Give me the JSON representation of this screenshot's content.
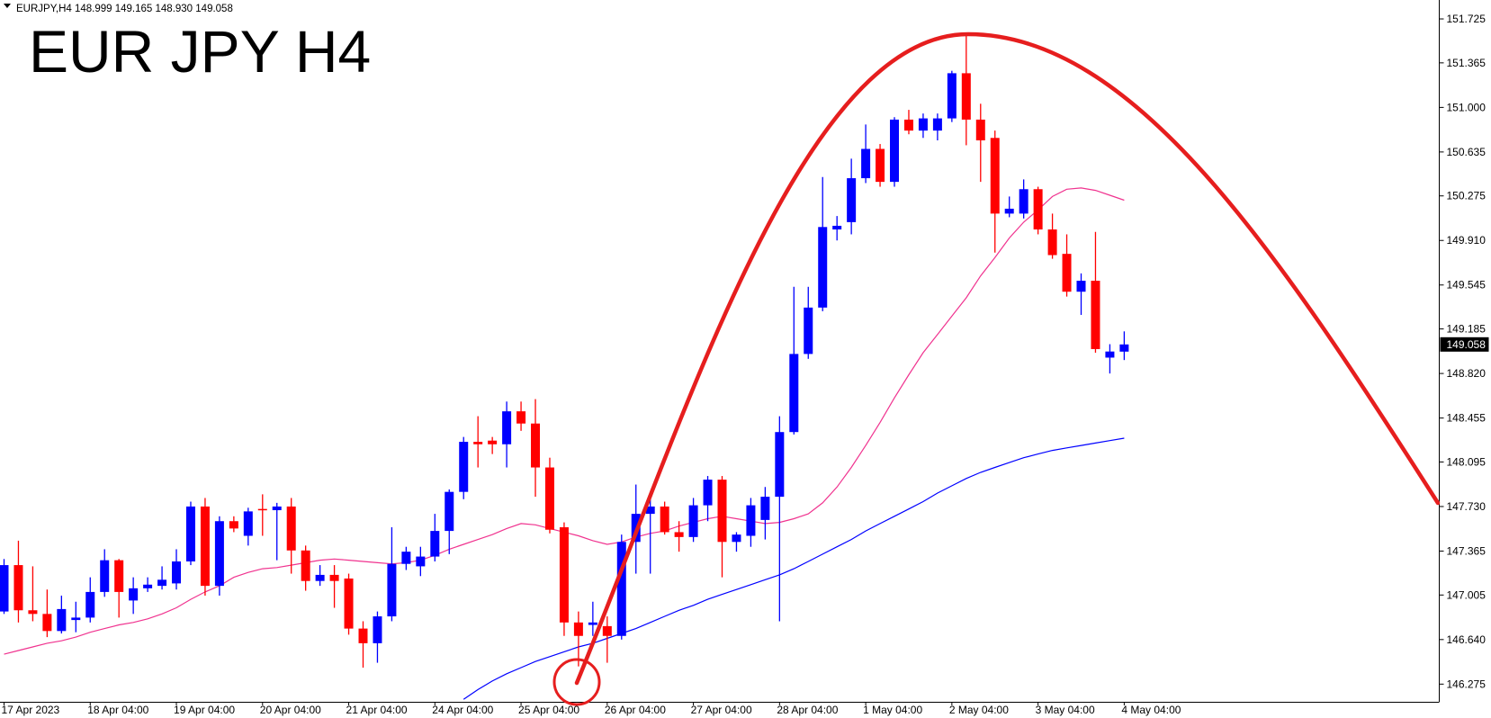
{
  "chart_data": {
    "type": "candlestick",
    "title": "EUR JPY H4",
    "info": "EURJPY,H4  148.999 149.165 148.930 149.058",
    "categories": [
      "17 Apr 2023",
      null,
      null,
      null,
      null,
      null,
      "18 Apr 04:00",
      null,
      null,
      null,
      null,
      null,
      "19 Apr 04:00",
      null,
      null,
      null,
      null,
      null,
      "20 Apr 04:00",
      null,
      null,
      null,
      null,
      null,
      "21 Apr 04:00",
      null,
      null,
      null,
      null,
      null,
      "24 Apr 04:00",
      null,
      null,
      null,
      null,
      null,
      "25 Apr 04:00",
      null,
      null,
      null,
      null,
      null,
      "26 Apr 04:00",
      null,
      null,
      null,
      null,
      null,
      "27 Apr 04:00",
      null,
      null,
      null,
      null,
      null,
      "28 Apr 04:00",
      null,
      null,
      null,
      null,
      null,
      "1 May 04:00",
      null,
      null,
      null,
      null,
      null,
      "2 May 04:00",
      null,
      null,
      null,
      null,
      null,
      "3 May 04:00",
      null,
      null,
      null,
      null,
      null,
      "4 May 04:00"
    ],
    "open": [
      146.87,
      147.25,
      146.88,
      146.85,
      146.71,
      146.8,
      146.82,
      147.03,
      147.29,
      146.96,
      147.06,
      147.08,
      147.1,
      147.28,
      147.73,
      147.08,
      147.61,
      147.49,
      147.71,
      147.7,
      147.73,
      147.37,
      147.12,
      147.17,
      147.14,
      146.73,
      146.61,
      146.83,
      147.26,
      147.24,
      147.32,
      147.53,
      147.85,
      148.26,
      148.27,
      148.24,
      148.51,
      148.41,
      148.05,
      147.56,
      146.78,
      146.76,
      146.75,
      146.67,
      147.44,
      147.67,
      147.73,
      147.52,
      147.48,
      147.74,
      147.95,
      147.44,
      147.49,
      147.62,
      147.81,
      148.34,
      148.98,
      149.36,
      150.0,
      150.06,
      150.42,
      150.66,
      150.39,
      150.9,
      150.81,
      150.81,
      150.91,
      151.28,
      150.9,
      150.75,
      150.13,
      150.13,
      150.33,
      150.0,
      149.8,
      149.49,
      149.58,
      148.95,
      148.999
    ],
    "high": [
      147.3,
      147.45,
      147.24,
      147.05,
      147.0,
      146.95,
      147.15,
      147.38,
      147.3,
      147.15,
      147.15,
      147.24,
      147.38,
      147.77,
      147.8,
      147.65,
      147.65,
      147.72,
      147.83,
      147.76,
      147.8,
      147.41,
      147.25,
      147.25,
      147.18,
      146.79,
      146.87,
      147.56,
      147.4,
      147.4,
      147.67,
      147.87,
      148.3,
      148.47,
      148.3,
      148.59,
      148.59,
      148.61,
      148.13,
      147.6,
      146.87,
      146.95,
      146.83,
      147.5,
      147.91,
      147.81,
      147.77,
      147.61,
      147.8,
      147.98,
      147.98,
      147.52,
      147.8,
      147.89,
      148.47,
      149.53,
      149.53,
      150.43,
      150.11,
      150.58,
      150.86,
      150.7,
      150.92,
      150.98,
      150.95,
      150.95,
      151.3,
      151.61,
      151.03,
      150.81,
      150.27,
      150.41,
      150.35,
      150.13,
      149.96,
      149.64,
      149.98,
      149.06,
      149.165
    ],
    "low": [
      146.85,
      146.78,
      146.79,
      146.66,
      146.69,
      146.7,
      146.78,
      146.99,
      146.82,
      146.85,
      147.03,
      147.05,
      147.05,
      147.25,
      147.0,
      147.0,
      147.52,
      147.41,
      147.49,
      147.29,
      147.18,
      147.04,
      147.08,
      146.9,
      146.68,
      146.41,
      146.45,
      146.79,
      147.21,
      147.16,
      147.28,
      147.34,
      147.79,
      148.05,
      148.16,
      148.05,
      148.35,
      147.81,
      147.51,
      146.67,
      146.42,
      146.67,
      146.45,
      146.64,
      147.18,
      147.18,
      147.5,
      147.36,
      147.44,
      147.61,
      147.15,
      147.36,
      147.4,
      147.46,
      146.79,
      148.32,
      148.94,
      149.33,
      149.91,
      149.96,
      150.38,
      150.35,
      150.35,
      150.78,
      150.75,
      150.73,
      150.88,
      150.69,
      150.39,
      149.81,
      150.1,
      150.09,
      149.96,
      149.76,
      149.45,
      149.3,
      148.99,
      148.82,
      148.93
    ],
    "close": [
      147.25,
      146.88,
      146.85,
      146.71,
      146.89,
      146.82,
      147.03,
      147.29,
      147.03,
      147.06,
      147.09,
      147.13,
      147.28,
      147.73,
      147.08,
      147.61,
      147.55,
      147.69,
      147.7,
      147.73,
      147.37,
      147.12,
      147.17,
      147.12,
      146.73,
      146.61,
      146.83,
      147.26,
      147.36,
      147.32,
      147.53,
      147.85,
      148.26,
      148.24,
      148.24,
      148.51,
      148.41,
      148.05,
      147.54,
      146.78,
      146.67,
      146.78,
      146.67,
      147.44,
      147.67,
      147.73,
      147.52,
      147.48,
      147.74,
      147.95,
      147.44,
      147.5,
      147.74,
      147.81,
      148.34,
      148.98,
      149.36,
      150.02,
      150.03,
      150.42,
      150.66,
      150.39,
      150.9,
      150.81,
      150.91,
      150.91,
      151.28,
      150.9,
      150.73,
      150.13,
      150.17,
      150.33,
      150.0,
      149.79,
      149.49,
      149.58,
      149.02,
      149.0,
      149.058
    ],
    "up_color": "#0000ff",
    "down_color": "#ff0000",
    "moving_averages": [
      {
        "color": "#f0338f",
        "values": [
          146.52,
          146.55,
          146.58,
          146.61,
          146.63,
          146.66,
          146.7,
          146.73,
          146.76,
          146.78,
          146.81,
          146.85,
          146.9,
          146.97,
          147.03,
          147.08,
          147.15,
          147.19,
          147.22,
          147.23,
          147.25,
          147.27,
          147.29,
          147.3,
          147.29,
          147.28,
          147.27,
          147.26,
          147.27,
          147.29,
          147.33,
          147.38,
          147.42,
          147.46,
          147.5,
          147.55,
          147.59,
          147.58,
          147.55,
          147.52,
          147.49,
          147.45,
          147.42,
          147.44,
          147.48,
          147.51,
          147.53,
          147.57,
          147.6,
          147.63,
          147.65,
          147.63,
          147.61,
          147.59,
          147.6,
          147.63,
          147.67,
          147.76,
          147.89,
          148.05,
          148.23,
          148.42,
          148.62,
          148.81,
          148.99,
          149.14,
          149.29,
          149.44,
          149.62,
          149.77,
          149.93,
          150.06,
          150.16,
          150.27,
          150.33,
          150.34,
          150.32,
          150.28,
          150.24
        ]
      },
      {
        "color": "#0000ff",
        "values": [
          null,
          null,
          null,
          null,
          null,
          null,
          null,
          null,
          null,
          null,
          null,
          null,
          null,
          null,
          null,
          null,
          null,
          null,
          null,
          null,
          null,
          null,
          null,
          null,
          null,
          null,
          null,
          null,
          null,
          null,
          null,
          null,
          146.15,
          146.23,
          146.3,
          146.36,
          146.41,
          146.46,
          146.5,
          146.54,
          146.58,
          146.61,
          146.65,
          146.69,
          146.73,
          146.78,
          146.83,
          146.88,
          146.92,
          146.97,
          147.01,
          147.05,
          147.09,
          147.13,
          147.17,
          147.22,
          147.28,
          147.34,
          147.4,
          147.46,
          147.53,
          147.59,
          147.65,
          147.71,
          147.77,
          147.84,
          147.9,
          147.96,
          148.01,
          148.05,
          148.09,
          148.13,
          148.16,
          148.19,
          148.21,
          148.23,
          148.25,
          148.27,
          148.29
        ]
      }
    ],
    "ylim": [
      146.13,
      151.88
    ],
    "yticks": [
      151.725,
      151.365,
      {
        "value": 151,
        "label": "151.000"
      },
      150.635,
      150.275,
      {
        "value": 149.91,
        "label": "149.910"
      },
      149.545,
      149.185,
      {
        "value": 148.82,
        "label": "148.820"
      },
      148.455,
      148.095,
      {
        "value": 147.73,
        "label": "147.730"
      },
      147.365,
      147.005,
      {
        "value": 146.64,
        "label": "146.640"
      },
      146.275
    ],
    "last_price": 149.058
  }
}
